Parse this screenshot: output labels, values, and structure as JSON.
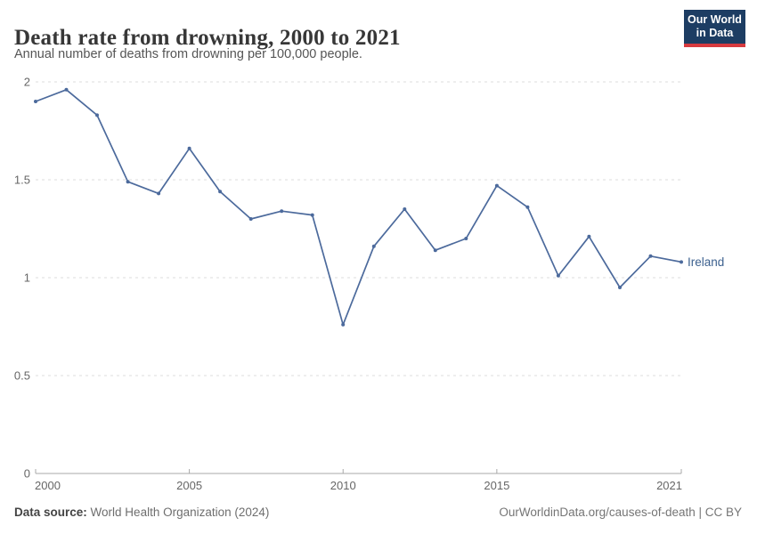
{
  "header": {
    "title": "Death rate from drowning, 2000 to 2021",
    "subtitle": "Annual number of deaths from drowning per 100,000 people.",
    "logo": {
      "line1": "Our World",
      "line2": "in Data",
      "bg_color": "#1d3d63",
      "accent_color": "#d73a3f"
    }
  },
  "chart_data": {
    "type": "line",
    "title": "Death rate from drowning, 2000 to 2021",
    "xlabel": "",
    "ylabel": "",
    "x": [
      2000,
      2001,
      2002,
      2003,
      2004,
      2005,
      2006,
      2007,
      2008,
      2009,
      2010,
      2011,
      2012,
      2013,
      2014,
      2015,
      2016,
      2017,
      2018,
      2019,
      2020,
      2021
    ],
    "series": [
      {
        "name": "Ireland",
        "color": "#4c6a9c",
        "label_color": "#3d618f",
        "values": [
          1.9,
          1.96,
          1.83,
          1.49,
          1.43,
          1.66,
          1.44,
          1.3,
          1.34,
          1.32,
          0.76,
          1.16,
          1.35,
          1.14,
          1.2,
          1.47,
          1.36,
          1.01,
          1.21,
          0.95,
          1.11,
          1.08
        ]
      }
    ],
    "xlim": [
      2000,
      2021
    ],
    "ylim": [
      0,
      2
    ],
    "yticks": [
      0,
      0.5,
      1,
      1.5,
      2
    ],
    "ytick_labels": [
      "0",
      "0.5",
      "1",
      "1.5",
      "2"
    ],
    "xticks": [
      2000,
      2005,
      2010,
      2015,
      2021
    ],
    "grid": "horizontal-dashed",
    "grid_color": "#dddddd",
    "axis_color": "#a8a8a8",
    "tick_label_color": "#666666",
    "legend_position": "end-of-line"
  },
  "footer": {
    "source_label": "Data source:",
    "source_value": "World Health Organization (2024)",
    "link": "OurWorldinData.org/causes-of-death | CC BY"
  }
}
